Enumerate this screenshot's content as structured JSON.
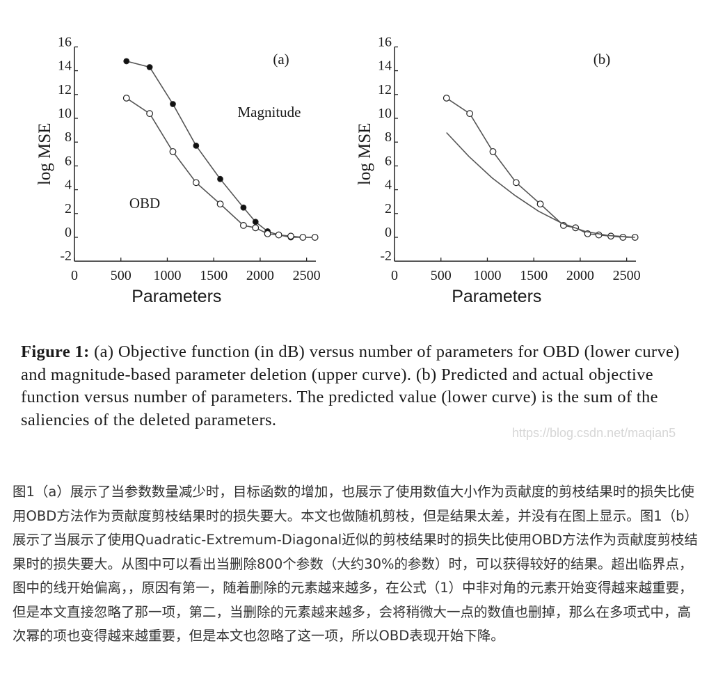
{
  "chart_data": [
    {
      "type": "line",
      "panel_label": "(a)",
      "xlabel": "Parameters",
      "ylabel": "log MSE",
      "xlim": [
        0,
        2600
      ],
      "ylim": [
        -2,
        16
      ],
      "x_ticks": [
        "0",
        "500",
        "1000",
        "1500",
        "2000",
        "2500"
      ],
      "y_ticks": [
        "-2",
        "0",
        "2",
        "4",
        "6",
        "8",
        "10",
        "12",
        "14",
        "16"
      ],
      "annotations": [
        "Magnitude",
        "OBD"
      ],
      "series": [
        {
          "marker": "filled",
          "x": [
            560,
            810,
            1060,
            1310,
            1570,
            1820,
            1950,
            2080,
            2200,
            2330,
            2460,
            2590
          ],
          "y": [
            14.8,
            14.3,
            11.2,
            7.7,
            4.9,
            2.5,
            1.3,
            0.5,
            0.2,
            0.0,
            0.0,
            0.0
          ]
        },
        {
          "marker": "open",
          "x": [
            560,
            810,
            1060,
            1310,
            1570,
            1820,
            1950,
            2080,
            2200,
            2330,
            2460,
            2590
          ],
          "y": [
            11.7,
            10.4,
            7.2,
            4.6,
            2.8,
            1.0,
            0.8,
            0.3,
            0.2,
            0.1,
            0.0,
            0.0
          ]
        }
      ]
    },
    {
      "type": "line",
      "panel_label": "(b)",
      "xlabel": "Parameters",
      "ylabel": "log MSE",
      "xlim": [
        0,
        2600
      ],
      "ylim": [
        -2,
        16
      ],
      "x_ticks": [
        "0",
        "500",
        "1000",
        "1500",
        "2000",
        "2500"
      ],
      "y_ticks": [
        "-2",
        "0",
        "2",
        "4",
        "6",
        "8",
        "10",
        "12",
        "14",
        "16"
      ],
      "series": [
        {
          "marker": "open",
          "x": [
            560,
            810,
            1060,
            1310,
            1570,
            1820,
            1950,
            2080,
            2200,
            2330,
            2460,
            2590
          ],
          "y": [
            11.7,
            10.4,
            7.2,
            4.6,
            2.8,
            1.0,
            0.8,
            0.3,
            0.2,
            0.1,
            0.0,
            0.0
          ]
        },
        {
          "marker": "none",
          "x": [
            560,
            800,
            1050,
            1300,
            1550,
            1800,
            2050,
            2300,
            2590
          ],
          "y": [
            8.8,
            6.8,
            5.0,
            3.5,
            2.2,
            1.2,
            0.5,
            0.15,
            0.0
          ]
        }
      ]
    }
  ],
  "caption": {
    "label": "Figure 1:",
    "text": " (a) Objective function (in dB) versus number of parameters for OBD (lower curve) and magnitude-based parameter deletion (upper curve). (b) Predicted and actual objective function versus number of parameters. The predicted value (lower curve) is the sum of the saliencies of the deleted parameters."
  },
  "watermark": "https://blog.csdn.net/maqian5",
  "article_text": "图1（a）展示了当参数数量减少时，目标函数的增加，也展示了使用数值大小作为贡献度的剪枝结果时的损失比使用OBD方法作为贡献度剪枝结果时的损失要大。本文也做随机剪枝，但是结果太差，并没有在图上显示。图1（b）展示了当展示了使用Quadratic-Extremum-Diagonal近似的剪枝结果时的损失比使用OBD方法作为贡献度剪枝结果时的损失要大。从图中可以看出当删除800个参数（大约30%的参数）时，可以获得较好的结果。超出临界点，图中的线开始偏离，，原因有第一，随着删除的元素越来越多，在公式（1）中非对角的元素开始变得越来越重要，但是本文直接忽略了那一项，第二，当删除的元素越来越多，会将稍微大一点的数值也删掉，那么在多项式中，高次幂的项也变得越来越重要，但是本文也忽略了这一项，所以OBD表现开始下降。"
}
